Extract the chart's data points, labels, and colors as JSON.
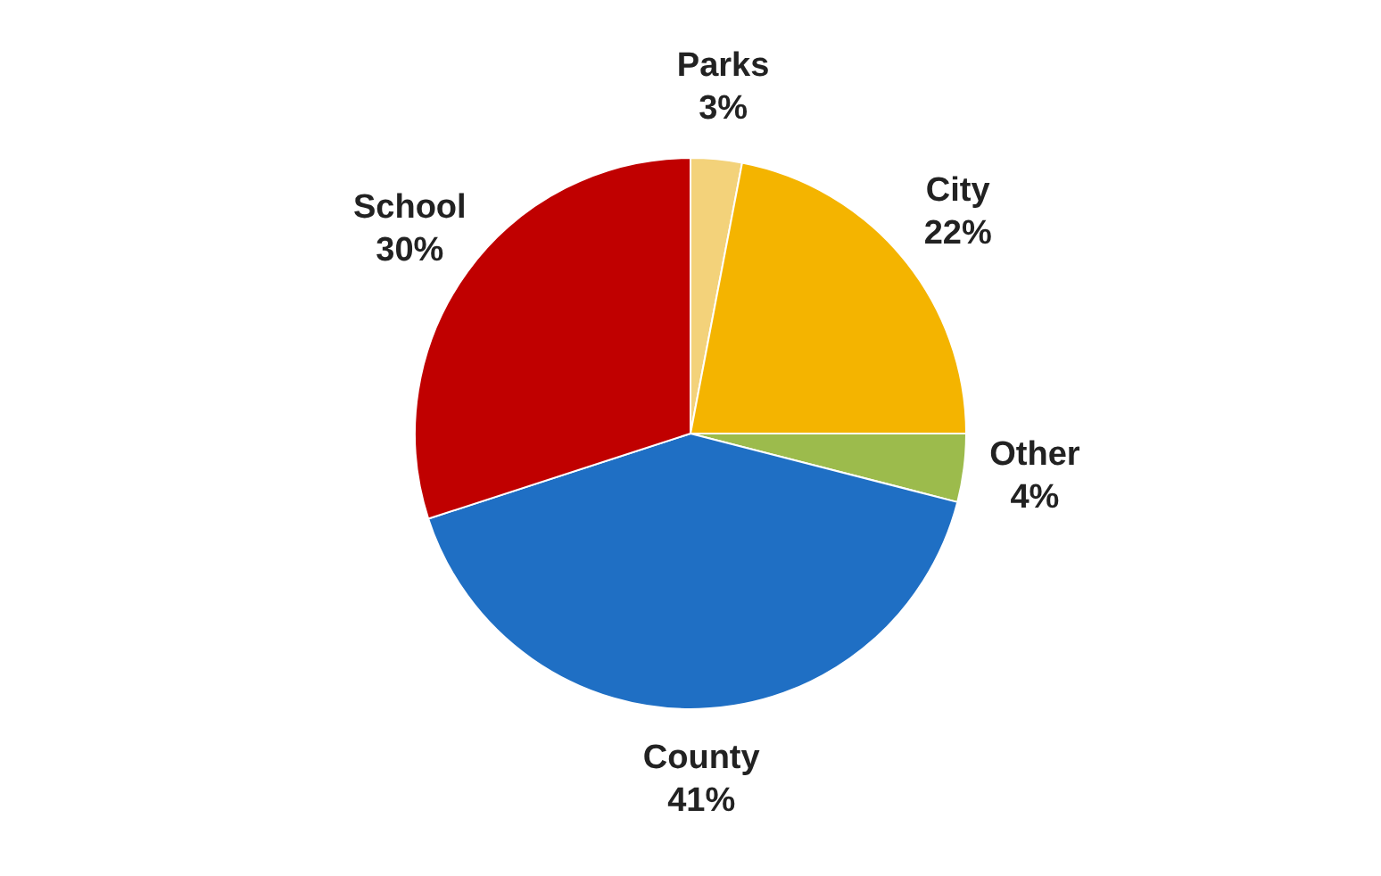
{
  "chart_data": {
    "type": "pie",
    "categories": [
      "Parks",
      "City",
      "Other",
      "County",
      "School"
    ],
    "values": [
      3,
      22,
      4,
      41,
      30
    ],
    "colors": [
      "#f3d27a",
      "#f4b400",
      "#9cbb4c",
      "#1f6fc4",
      "#c00000"
    ],
    "value_labels": [
      "3%",
      "22%",
      "4%",
      "41%",
      "30%"
    ],
    "legend": false
  }
}
